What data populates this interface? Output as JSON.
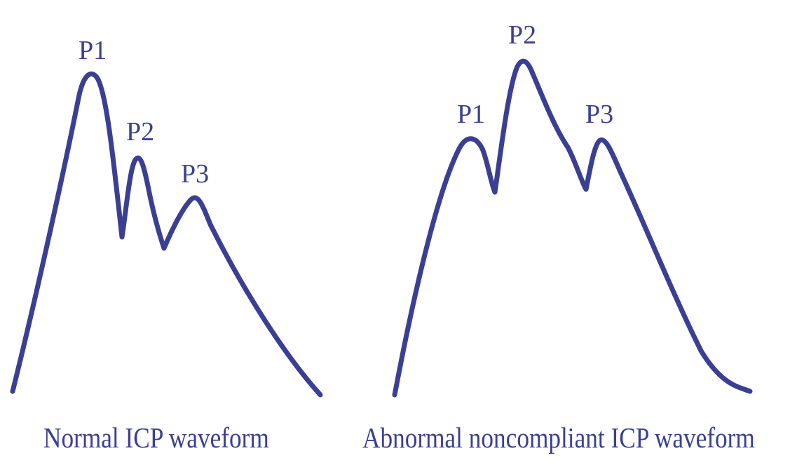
{
  "style": {
    "color": "#3b3f94"
  },
  "normal": {
    "caption": "Normal ICP waveform",
    "peaks": [
      "P1",
      "P2",
      "P3"
    ]
  },
  "abnormal": {
    "caption": "Abnormal noncompliant ICP waveform",
    "peaks": [
      "P1",
      "P2",
      "P3"
    ]
  }
}
